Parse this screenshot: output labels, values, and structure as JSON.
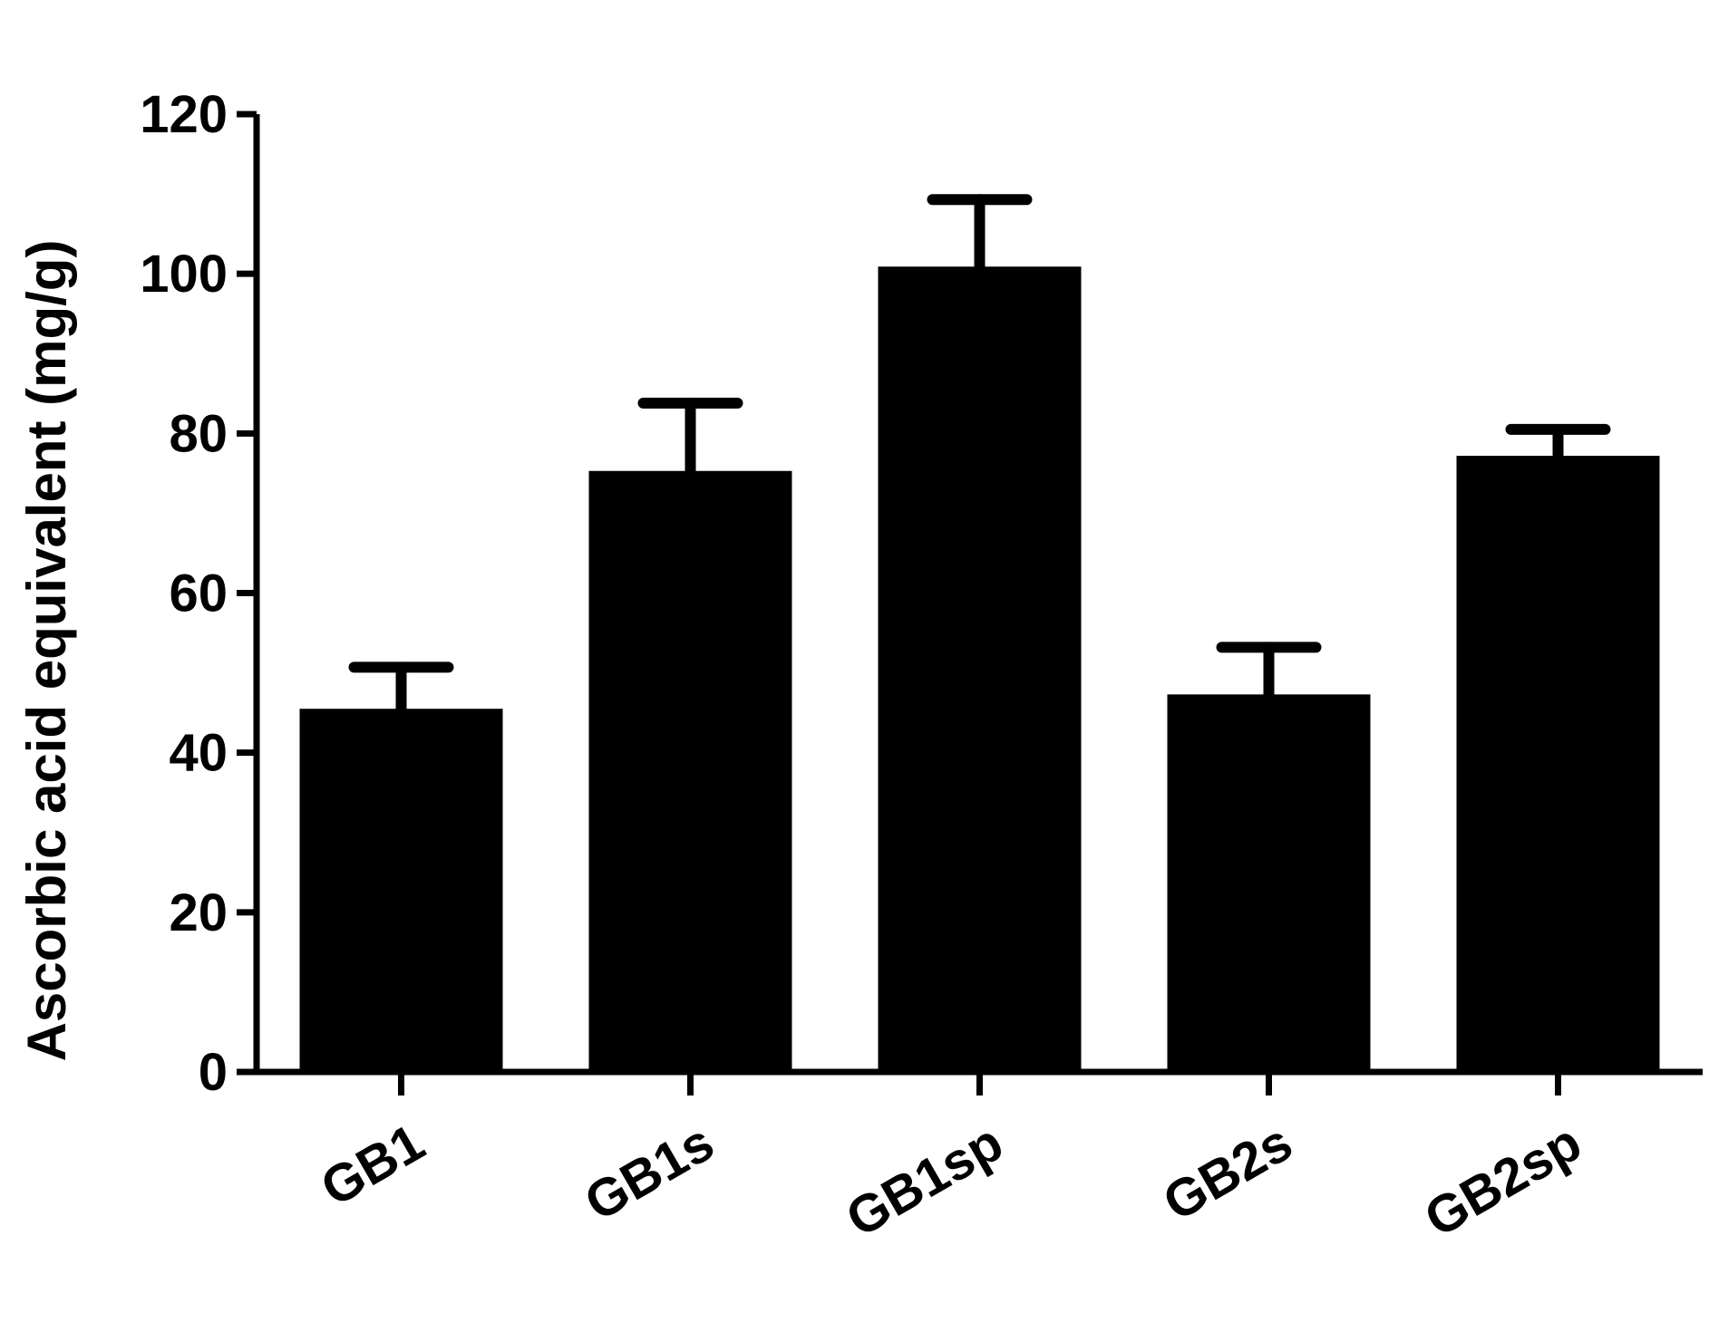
{
  "chart_data": {
    "type": "bar",
    "y_label": "Ascorbic acid equivalent (mg/g)",
    "categories": [
      "GB1",
      "GB1s",
      "GB1sp",
      "GB2s",
      "GB2sp"
    ],
    "values": [
      45.5,
      75.3,
      100.9,
      47.3,
      77.2
    ],
    "errors": [
      5.2,
      8.5,
      8.4,
      5.9,
      3.3
    ],
    "color": "#000000",
    "ylim": [
      0,
      120
    ],
    "yticks": [
      0,
      20,
      40,
      60,
      80,
      100,
      120
    ],
    "grid": false
  }
}
